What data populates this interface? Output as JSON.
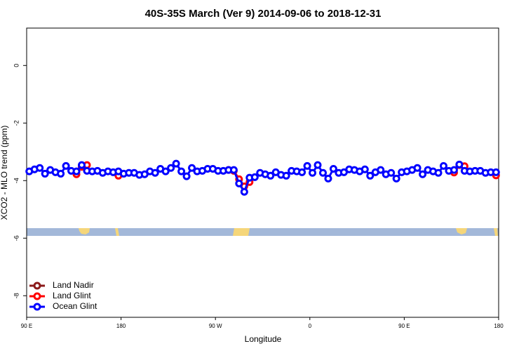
{
  "chart_data": {
    "type": "line",
    "title": "40S-35S March (Ver 9)   2014-09-06 to 2018-12-31",
    "x_label": "Longitude",
    "y_label": "XCO2 - MLO trend (ppm)",
    "xlim": [
      90,
      540
    ],
    "xticks": [
      {
        "value": 90,
        "label": "90 E"
      },
      180,
      {
        "value": 270,
        "label": "90 W"
      },
      {
        "value": 360,
        "label": "0"
      },
      {
        "value": 450,
        "label": "90 E"
      },
      {
        "value": 540,
        "label": "180"
      }
    ],
    "ylim": [
      -8.75,
      1.3
    ],
    "yticks": [
      0,
      -2,
      -4,
      -6,
      -8
    ],
    "legend": "bottom left",
    "x": [
      92.5,
      97.5,
      102.5,
      107.5,
      112.5,
      117.5,
      122.5,
      127.5,
      132.5,
      137.5,
      142.5,
      147.5,
      152.5,
      157.5,
      162.5,
      167.5,
      172.5,
      177.5,
      182.5,
      187.5,
      192.5,
      197.5,
      202.5,
      207.5,
      212.5,
      217.5,
      222.5,
      227.5,
      232.5,
      237.5,
      242.5,
      247.5,
      252.5,
      257.5,
      262.5,
      267.5,
      272.5,
      277.5,
      282.5,
      287.5,
      292.5,
      297.5,
      302.5,
      307.5,
      312.5,
      317.5,
      322.5,
      327.5,
      332.5,
      337.5,
      342.5,
      347.5,
      352.5,
      357.5,
      362.5,
      367.5,
      372.5,
      377.5,
      382.5,
      387.5,
      392.5,
      397.5,
      402.5,
      407.5,
      412.5,
      417.5,
      422.5,
      427.5,
      432.5,
      437.5,
      442.5,
      447.5,
      452.5,
      457.5,
      462.5,
      467.5,
      472.5,
      477.5,
      482.5,
      487.5,
      492.5,
      497.5,
      502.5,
      507.5,
      512.5,
      517.5,
      522.5,
      527.5,
      532.5,
      537.5
    ],
    "series": [
      {
        "name": "Land Nadir",
        "color": "#8b1a1a",
        "values": [
          null,
          null,
          null,
          null,
          null,
          null,
          null,
          null,
          null,
          null,
          null,
          null,
          null,
          null,
          null,
          null,
          null,
          null,
          null,
          null,
          null,
          null,
          null,
          null,
          null,
          null,
          null,
          null,
          null,
          null,
          null,
          null,
          null,
          null,
          null,
          null,
          null,
          null,
          null,
          null,
          null,
          null,
          null,
          null,
          null,
          null,
          null,
          null,
          null,
          null,
          null,
          null,
          null,
          null,
          null,
          null,
          null,
          null,
          null,
          null,
          null,
          null,
          null,
          null,
          null,
          null,
          null,
          null,
          null,
          null,
          null,
          null,
          null,
          null,
          null,
          null,
          null,
          null,
          null,
          null,
          null,
          null,
          null,
          null,
          null,
          null,
          null,
          null,
          null,
          null
        ]
      },
      {
        "name": "Land Glint",
        "color": "#ff0000",
        "values": [
          null,
          null,
          null,
          null,
          null,
          null,
          null,
          null,
          null,
          -3.78,
          -3.52,
          -3.46,
          null,
          null,
          null,
          null,
          null,
          -3.83,
          null,
          null,
          null,
          null,
          null,
          null,
          null,
          null,
          null,
          null,
          null,
          null,
          null,
          null,
          null,
          null,
          null,
          null,
          null,
          null,
          -3.63,
          -3.66,
          -3.95,
          -4.2,
          -4.05,
          null,
          null,
          null,
          null,
          null,
          null,
          null,
          null,
          null,
          null,
          null,
          null,
          null,
          null,
          null,
          null,
          null,
          null,
          null,
          null,
          null,
          null,
          null,
          null,
          null,
          null,
          null,
          null,
          null,
          null,
          null,
          null,
          null,
          null,
          null,
          null,
          null,
          null,
          -3.72,
          -3.46,
          -3.5,
          null,
          null,
          null,
          null,
          null,
          -3.82
        ]
      },
      {
        "name": "Ocean Glint",
        "color": "#0000ff",
        "values": [
          -3.68,
          -3.61,
          -3.56,
          -3.76,
          -3.63,
          -3.71,
          -3.76,
          -3.49,
          -3.66,
          -3.68,
          -3.46,
          -3.66,
          -3.68,
          -3.66,
          -3.73,
          -3.68,
          -3.71,
          -3.68,
          -3.76,
          -3.73,
          -3.73,
          -3.8,
          -3.78,
          -3.68,
          -3.73,
          -3.59,
          -3.68,
          -3.56,
          -3.41,
          -3.68,
          -3.85,
          -3.56,
          -3.68,
          -3.66,
          -3.59,
          -3.59,
          -3.66,
          -3.66,
          -3.63,
          -3.63,
          -4.1,
          -4.39,
          -3.9,
          -3.88,
          -3.73,
          -3.78,
          -3.83,
          -3.71,
          -3.8,
          -3.83,
          -3.66,
          -3.68,
          -3.71,
          -3.49,
          -3.73,
          -3.46,
          -3.73,
          -3.93,
          -3.59,
          -3.73,
          -3.71,
          -3.61,
          -3.63,
          -3.68,
          -3.61,
          -3.83,
          -3.71,
          -3.63,
          -3.78,
          -3.73,
          -3.93,
          -3.71,
          -3.68,
          -3.63,
          -3.56,
          -3.78,
          -3.63,
          -3.68,
          -3.73,
          -3.49,
          -3.66,
          -3.63,
          -3.44,
          -3.66,
          -3.68,
          -3.66,
          -3.66,
          -3.73,
          -3.71,
          -3.71
        ]
      }
    ]
  }
}
